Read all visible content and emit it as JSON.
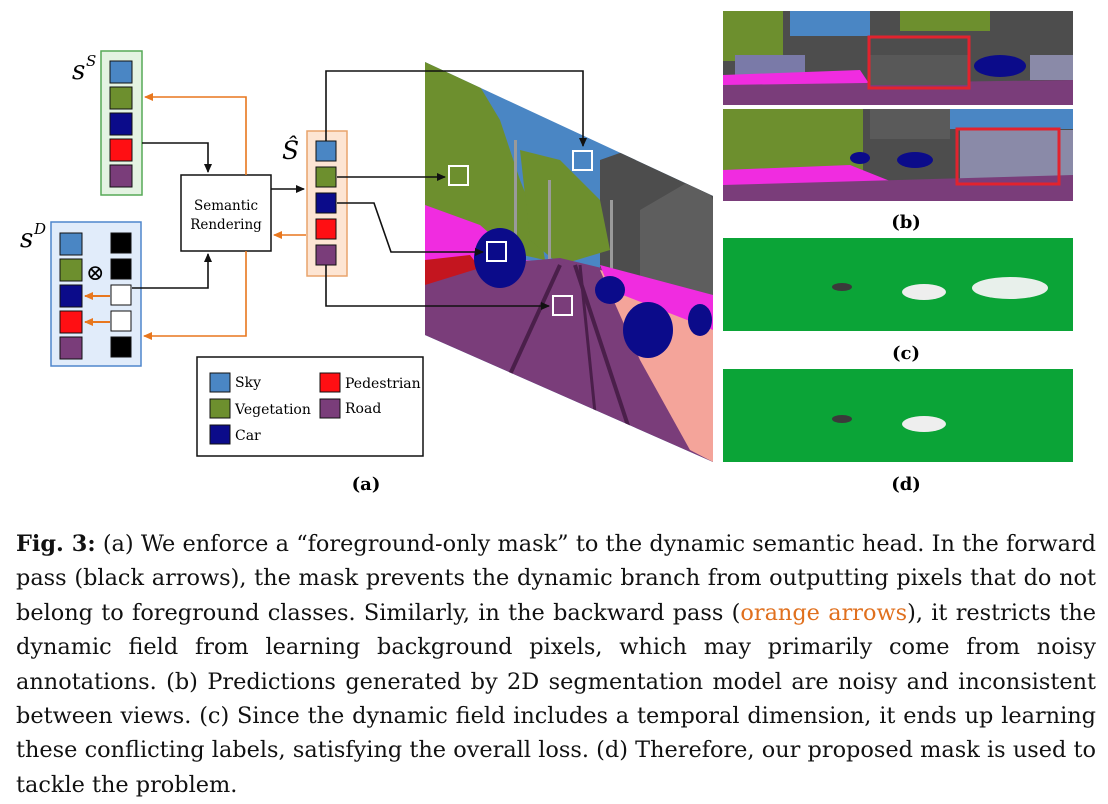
{
  "figure": {
    "panel_a": {
      "s_static_label": "s",
      "s_static_sup": "S",
      "s_dynamic_label": "s",
      "s_dynamic_sup": "D",
      "s_hat_label": "Ŝ",
      "rendering_line1": "Semantic",
      "rendering_line2": "Rendering",
      "otimes": "⊗",
      "caption": "(a)"
    },
    "legend": [
      {
        "label": "Sky",
        "color": "#4a86c4"
      },
      {
        "label": "Pedestrian",
        "color": "#ff0f13"
      },
      {
        "label": "Vegetation",
        "color": "#6d8f2e"
      },
      {
        "label": "Road",
        "color": "#7a3d7a"
      },
      {
        "label": "Car",
        "color": "#0b0b8a"
      }
    ],
    "class_colors": [
      "#4a86c4",
      "#6d8f2e",
      "#0b0b8a",
      "#ff0f13",
      "#7a3d7a"
    ],
    "mask_values": [
      "black",
      "black",
      "white",
      "white",
      "black"
    ],
    "colors": {
      "forward_arrow": "#111111",
      "backward_arrow": "#e8771e",
      "static_box_bg": "#e4f3e2",
      "static_box_border": "#57a957",
      "dynamic_box_bg": "#e1ecfa",
      "dynamic_box_border": "#4f86cc",
      "shat_box_bg": "#fde5d3",
      "shat_box_border": "#e8a46c",
      "panel_green": "#0ba437"
    },
    "panel_b_caption": "(b)",
    "panel_c_caption": "(c)",
    "panel_d_caption": "(d)"
  },
  "caption": {
    "label": "Fig. 3:",
    "part1": "(a) We enforce a “foreground-only mask” to the dynamic semantic head. In the forward pass (black arrows), the mask prevents the dynamic branch from outputting pixels that do not belong to foreground classes. Similarly, in the backward pass (",
    "orange": "orange arrows",
    "part2": "), it restricts the dynamic field from learning background pixels, which may primarily come from noisy annotations. (b) Predictions generated by 2D segmentation model are noisy and inconsistent between views. (c) Since the dynamic field includes a temporal dimension, it ends up learning these conflicting labels, satisfying the overall loss. (d) Therefore, our proposed mask is used to tackle the problem."
  }
}
